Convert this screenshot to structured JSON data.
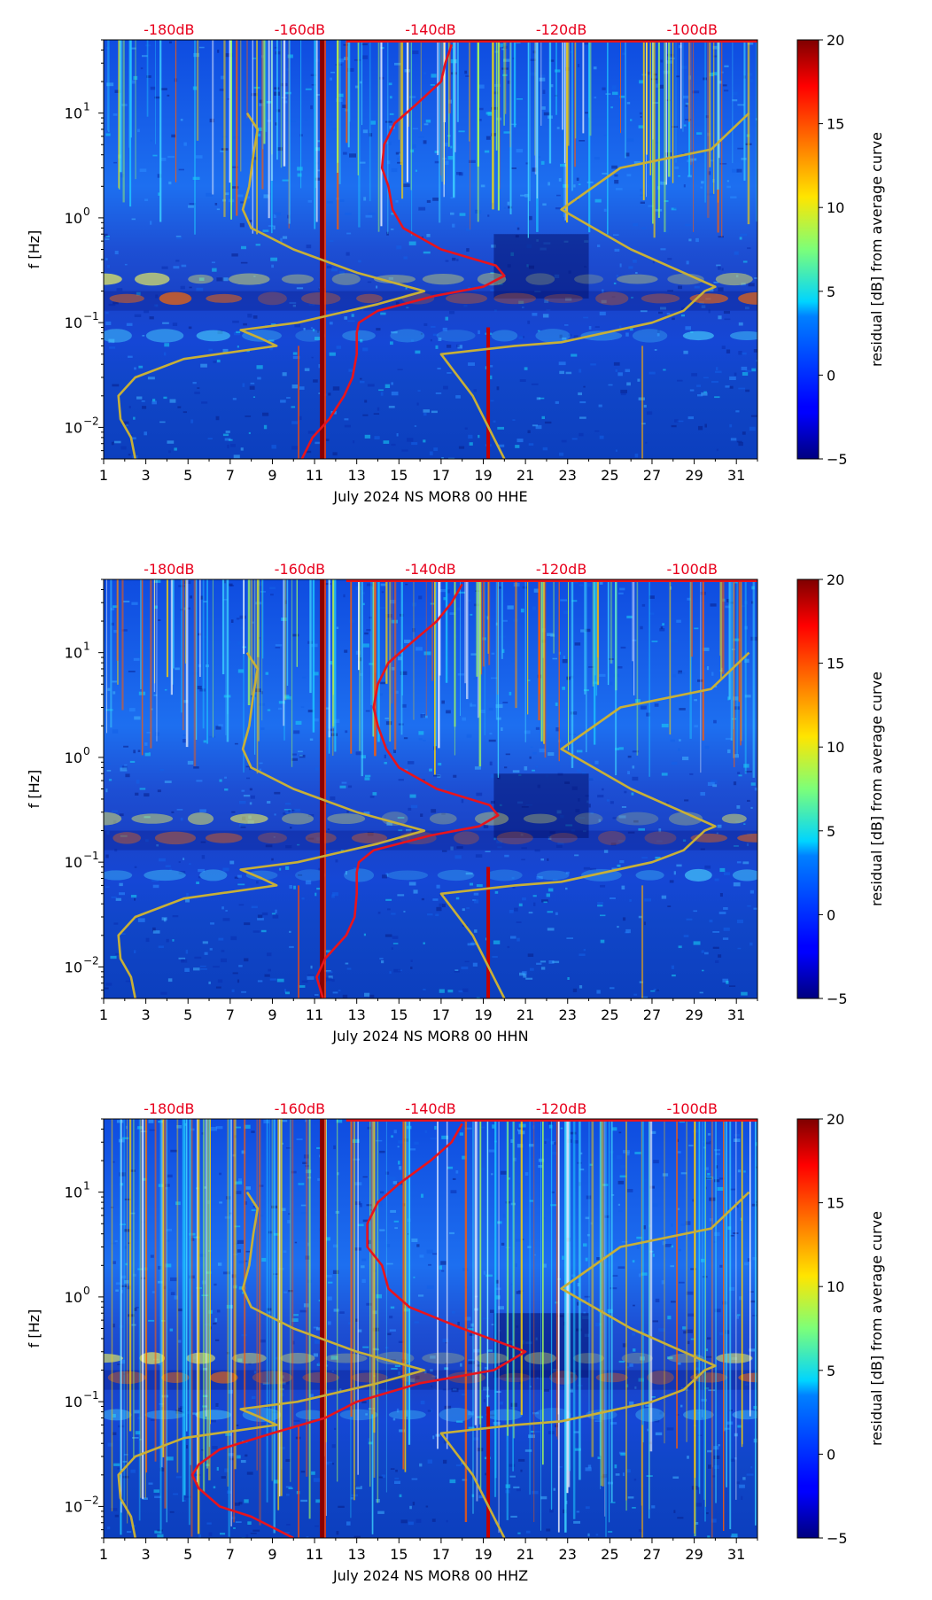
{
  "chart_data": [
    {
      "type": "heatmap",
      "title": "",
      "xlabel": "July 2024 NS MOR8 00 HHE",
      "ylabel": "f [Hz]",
      "x_ticks": [
        "1",
        "3",
        "5",
        "7",
        "9",
        "11",
        "13",
        "15",
        "17",
        "19",
        "21",
        "23",
        "25",
        "27",
        "29",
        "31"
      ],
      "xlim": [
        1,
        32
      ],
      "y_scale": "log",
      "ylim": [
        0.005,
        50
      ],
      "y_ticks": [
        {
          "base": "10",
          "exp": "−2",
          "value": 0.01
        },
        {
          "base": "10",
          "exp": "−1",
          "value": 0.1
        },
        {
          "base": "10",
          "exp": "0",
          "value": 1
        },
        {
          "base": "10",
          "exp": "1",
          "value": 10
        }
      ],
      "top_axis_ticks": [
        "-180dB",
        "-160dB",
        "-140dB",
        "-120dB",
        "-100dB"
      ],
      "top_axis_range_db": [
        -190,
        -90
      ],
      "colorbar": {
        "label": "residual [dB] from average curve",
        "ticks": [
          "−5",
          "0",
          "5",
          "10",
          "15",
          "20"
        ],
        "range": [
          -5,
          20
        ],
        "colormap": "jet"
      },
      "series": [
        {
          "name": "gold reference curve (left)",
          "color": "#c8b037",
          "freq": [
            0.005,
            0.008,
            0.012,
            0.02,
            0.03,
            0.045,
            0.06,
            0.07,
            0.085,
            0.1,
            0.15,
            0.2,
            0.3,
            0.5,
            0.8,
            1.2,
            2,
            4,
            7,
            10
          ],
          "x_day": [
            2.5,
            2.3,
            1.8,
            1.7,
            2.5,
            4.8,
            9.2,
            8.5,
            7.5,
            10.2,
            14,
            16.2,
            13,
            10,
            8,
            7.6,
            7.9,
            8.1,
            8.3,
            7.8
          ]
        },
        {
          "name": "gold reference curve (right)",
          "color": "#c8b037",
          "freq": [
            0.005,
            0.02,
            0.05,
            0.06,
            0.065,
            0.1,
            0.13,
            0.2,
            0.22,
            0.5,
            1.2,
            3,
            4.5,
            10
          ],
          "x_day": [
            20,
            18.5,
            17,
            20.5,
            22.7,
            27,
            28.5,
            29.5,
            30,
            26,
            22.7,
            25.5,
            29.8,
            31.6
          ]
        },
        {
          "name": "red median PSD curve",
          "color": "#e8141c",
          "freq": [
            0.005,
            0.008,
            0.012,
            0.02,
            0.03,
            0.05,
            0.08,
            0.1,
            0.13,
            0.18,
            0.22,
            0.28,
            0.35,
            0.5,
            0.8,
            1.2,
            2,
            3,
            5,
            8,
            12,
            20,
            30,
            45
          ],
          "x_day": [
            10.4,
            10.9,
            11.7,
            12.4,
            12.8,
            13,
            13,
            13.1,
            14,
            16.7,
            19,
            20,
            19.6,
            17,
            15.2,
            14.7,
            14.5,
            14.2,
            14.3,
            14.8,
            15.8,
            17,
            17.2,
            17.5
          ]
        }
      ]
    },
    {
      "type": "heatmap",
      "title": "",
      "xlabel": "July 2024 NS MOR8 00 HHN",
      "ylabel": "f [Hz]",
      "x_ticks": [
        "1",
        "3",
        "5",
        "7",
        "9",
        "11",
        "13",
        "15",
        "17",
        "19",
        "21",
        "23",
        "25",
        "27",
        "29",
        "31"
      ],
      "xlim": [
        1,
        32
      ],
      "y_scale": "log",
      "ylim": [
        0.005,
        50
      ],
      "y_ticks": [
        {
          "base": "10",
          "exp": "−2",
          "value": 0.01
        },
        {
          "base": "10",
          "exp": "−1",
          "value": 0.1
        },
        {
          "base": "10",
          "exp": "0",
          "value": 1
        },
        {
          "base": "10",
          "exp": "1",
          "value": 10
        }
      ],
      "top_axis_ticks": [
        "-180dB",
        "-160dB",
        "-140dB",
        "-120dB",
        "-100dB"
      ],
      "top_axis_range_db": [
        -190,
        -90
      ],
      "colorbar": {
        "label": "residual [dB] from average curve",
        "ticks": [
          "−5",
          "0",
          "5",
          "10",
          "15",
          "20"
        ],
        "range": [
          -5,
          20
        ],
        "colormap": "jet"
      },
      "series": [
        {
          "name": "gold reference curve (left)",
          "color": "#c8b037",
          "freq": [
            0.005,
            0.008,
            0.012,
            0.02,
            0.03,
            0.045,
            0.06,
            0.07,
            0.085,
            0.1,
            0.15,
            0.2,
            0.3,
            0.5,
            0.8,
            1.2,
            2,
            4,
            7,
            10
          ],
          "x_day": [
            2.5,
            2.3,
            1.8,
            1.7,
            2.5,
            4.8,
            9.2,
            8.5,
            7.5,
            10.2,
            14,
            16.2,
            13,
            10,
            8,
            7.6,
            7.9,
            8.1,
            8.3,
            7.8
          ]
        },
        {
          "name": "gold reference curve (right)",
          "color": "#c8b037",
          "freq": [
            0.005,
            0.02,
            0.05,
            0.06,
            0.065,
            0.1,
            0.13,
            0.2,
            0.22,
            0.5,
            1.2,
            3,
            4.5,
            10
          ],
          "x_day": [
            20,
            18.5,
            17,
            20.5,
            22.7,
            27,
            28.5,
            29.5,
            30,
            26,
            22.7,
            25.5,
            29.8,
            31.6
          ]
        },
        {
          "name": "red median PSD curve",
          "color": "#e8141c",
          "freq": [
            0.005,
            0.008,
            0.012,
            0.02,
            0.03,
            0.05,
            0.08,
            0.1,
            0.13,
            0.18,
            0.22,
            0.28,
            0.35,
            0.5,
            0.8,
            1.2,
            2,
            3,
            5,
            8,
            12,
            20,
            30,
            45
          ],
          "x_day": [
            11.4,
            11.1,
            11.5,
            12.5,
            12.9,
            13,
            13,
            13.1,
            13.8,
            16.5,
            18.8,
            19.7,
            19.3,
            16.8,
            15,
            14.4,
            14,
            13.8,
            14,
            14.5,
            15.5,
            16.8,
            17.5,
            18
          ]
        }
      ]
    },
    {
      "type": "heatmap",
      "title": "",
      "xlabel": "July 2024 NS MOR8 00 HHZ",
      "ylabel": "f [Hz]",
      "x_ticks": [
        "1",
        "3",
        "5",
        "7",
        "9",
        "11",
        "13",
        "15",
        "17",
        "19",
        "21",
        "23",
        "25",
        "27",
        "29",
        "31"
      ],
      "xlim": [
        1,
        32
      ],
      "y_scale": "log",
      "ylim": [
        0.005,
        50
      ],
      "y_ticks": [
        {
          "base": "10",
          "exp": "−2",
          "value": 0.01
        },
        {
          "base": "10",
          "exp": "−1",
          "value": 0.1
        },
        {
          "base": "10",
          "exp": "0",
          "value": 1
        },
        {
          "base": "10",
          "exp": "1",
          "value": 10
        }
      ],
      "top_axis_ticks": [
        "-180dB",
        "-160dB",
        "-140dB",
        "-120dB",
        "-100dB"
      ],
      "top_axis_range_db": [
        -190,
        -90
      ],
      "colorbar": {
        "label": "residual [dB] from average curve",
        "ticks": [
          "−5",
          "0",
          "5",
          "10",
          "15",
          "20"
        ],
        "range": [
          -5,
          20
        ],
        "colormap": "jet"
      },
      "series": [
        {
          "name": "gold reference curve (left)",
          "color": "#c8b037",
          "freq": [
            0.005,
            0.008,
            0.012,
            0.02,
            0.03,
            0.045,
            0.06,
            0.07,
            0.085,
            0.1,
            0.15,
            0.2,
            0.3,
            0.5,
            0.8,
            1.2,
            2,
            4,
            7,
            10
          ],
          "x_day": [
            2.5,
            2.3,
            1.8,
            1.7,
            2.5,
            4.8,
            9.2,
            8.5,
            7.5,
            10.2,
            14,
            16.2,
            13,
            10,
            8,
            7.6,
            7.9,
            8.1,
            8.3,
            7.8
          ]
        },
        {
          "name": "gold reference curve (right)",
          "color": "#c8b037",
          "freq": [
            0.005,
            0.02,
            0.05,
            0.06,
            0.065,
            0.1,
            0.13,
            0.2,
            0.22,
            0.5,
            1.2,
            3,
            4.5,
            10
          ],
          "x_day": [
            20,
            18.5,
            17,
            20.5,
            22.7,
            27,
            28.5,
            29.5,
            30,
            26,
            22.7,
            25.5,
            29.8,
            31.6
          ]
        },
        {
          "name": "red median PSD curve",
          "color": "#e8141c",
          "freq": [
            0.005,
            0.008,
            0.01,
            0.015,
            0.02,
            0.025,
            0.035,
            0.05,
            0.07,
            0.1,
            0.15,
            0.2,
            0.3,
            0.5,
            0.8,
            1.2,
            2,
            3,
            5,
            8,
            12,
            20,
            30,
            45
          ],
          "x_day": [
            10,
            8,
            6.5,
            5.5,
            5.2,
            5.5,
            6.5,
            9,
            11.5,
            13,
            16,
            19.5,
            21,
            18,
            15.5,
            14.5,
            14.2,
            13.5,
            13.5,
            14,
            15,
            16.5,
            17.5,
            18
          ]
        }
      ]
    }
  ]
}
